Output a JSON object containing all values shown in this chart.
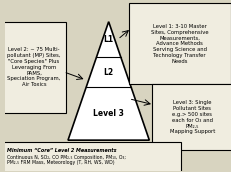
{
  "bg_color": "#f0ede0",
  "fig_bg": "#d8d4c0",
  "triangle_color": "#000000",
  "box_border_color": "#000000",
  "box_bg": "#f0ede0",
  "title": "",
  "level1_label": "L1",
  "level2_label": "L2",
  "level3_label": "Level 3",
  "left_box_text": "Level 2: ~ 75 Multi-\npollutant (MP) Sites,\n\"Core Species\" Plus\nLeveraging From\nPAMS,\nSpeciation Program,\nAir Toxics",
  "top_box_text": "Level 1: 3-10 Master\nSites, Comprehensive\nMeasurements,\nAdvance Methods\nServing Science and\nTechnology Transfer\nNeeds",
  "right_box_text": "Level 3: Single\nPollutant Sites\ne.g.> 500 sites\neach for O₃ and\nPM₂.₅\nMapping Support",
  "bottom_box_title": "Minimum “Core” Level 2 Measurements",
  "bottom_box_text": "Continuous N, SO₂, CO PM₂.₅ Composition, PM₁₀, O₃;\nPM₂.₅ FRM Mass, Meteorology (T, RH, WS, WD)"
}
